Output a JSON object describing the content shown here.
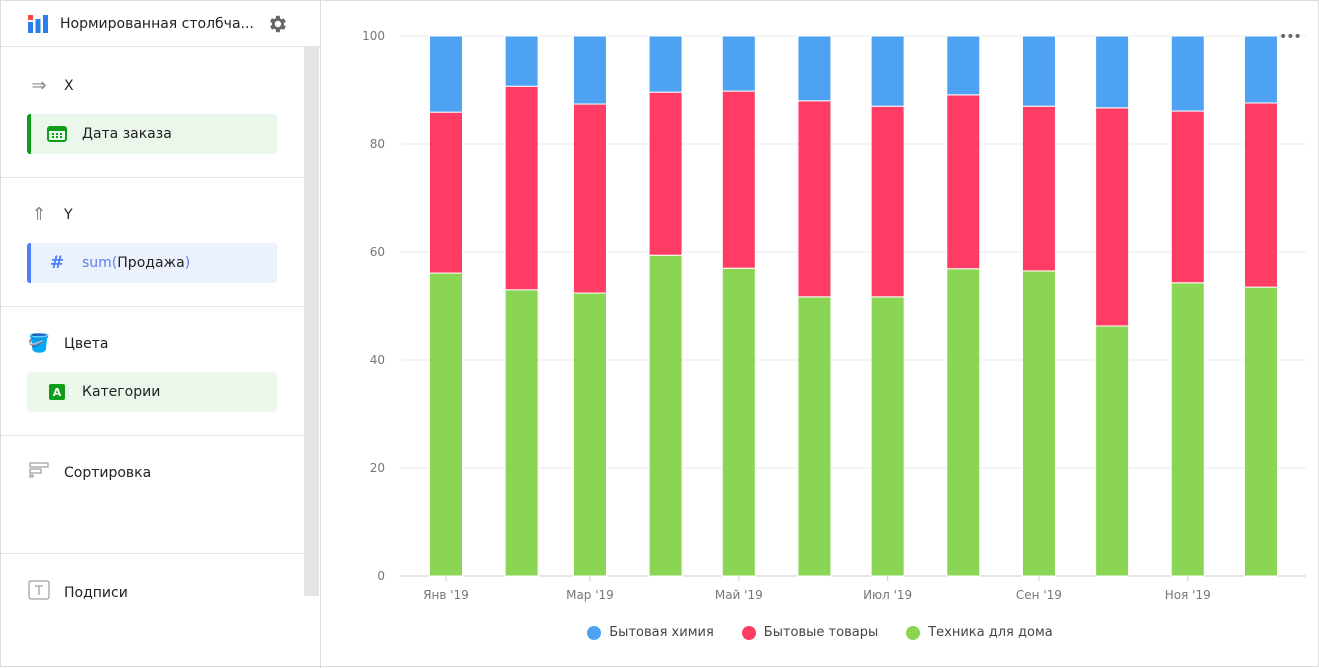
{
  "header": {
    "title": "Нормированная столбча...",
    "logo_icon": "chart-logo-icon",
    "settings_icon": "gear-icon"
  },
  "sections": {
    "x": {
      "label": "X",
      "field": "Дата заказа",
      "accent": "#0e9e1a"
    },
    "y": {
      "label": "Y",
      "field_fn": "sum(",
      "field_name": "Продажа",
      "field_close": ")",
      "accent": "#4f7ff7"
    },
    "colors": {
      "label": "Цвета",
      "field": "Категории",
      "accent": "#0e9e1a"
    },
    "sort": {
      "label": "Сортировка"
    },
    "labels": {
      "label": "Подписи"
    }
  },
  "chart_data": {
    "type": "bar",
    "stacking": "percent",
    "categories": [
      "2019-01",
      "2019-02",
      "2019-03",
      "2019-04",
      "2019-05",
      "2019-06",
      "2019-07",
      "2019-08",
      "2019-09",
      "2019-10",
      "2019-11",
      "2019-12"
    ],
    "x_tick_labels": [
      "Янв '19",
      "Мар '19",
      "Май '19",
      "Июл '19",
      "Сен '19",
      "Ноя '19"
    ],
    "ylim": [
      0,
      100
    ],
    "y_ticks": [
      "0",
      "20",
      "40",
      "60",
      "80",
      "100"
    ],
    "grid": true,
    "legend_position": "bottom",
    "series": [
      {
        "name": "Техника для дома",
        "color": "#8ad554",
        "values": [
          56.1,
          53.0,
          52.4,
          59.4,
          57.0,
          51.7,
          51.7,
          56.9,
          56.5,
          46.3,
          54.3,
          53.5
        ]
      },
      {
        "name": "Бытовые товары",
        "color": "#ff3d64",
        "values": [
          29.8,
          37.7,
          35.0,
          30.2,
          32.8,
          36.3,
          35.3,
          32.2,
          30.5,
          40.4,
          31.8,
          34.1
        ]
      },
      {
        "name": "Бытовая химия",
        "color": "#4da2f1",
        "values": [
          14.1,
          9.3,
          12.6,
          10.4,
          10.2,
          12.0,
          13.0,
          10.9,
          13.0,
          13.3,
          13.9,
          12.4
        ]
      }
    ],
    "legend_order": [
      "Бытовая химия",
      "Бытовые товары",
      "Техника для дома"
    ]
  }
}
